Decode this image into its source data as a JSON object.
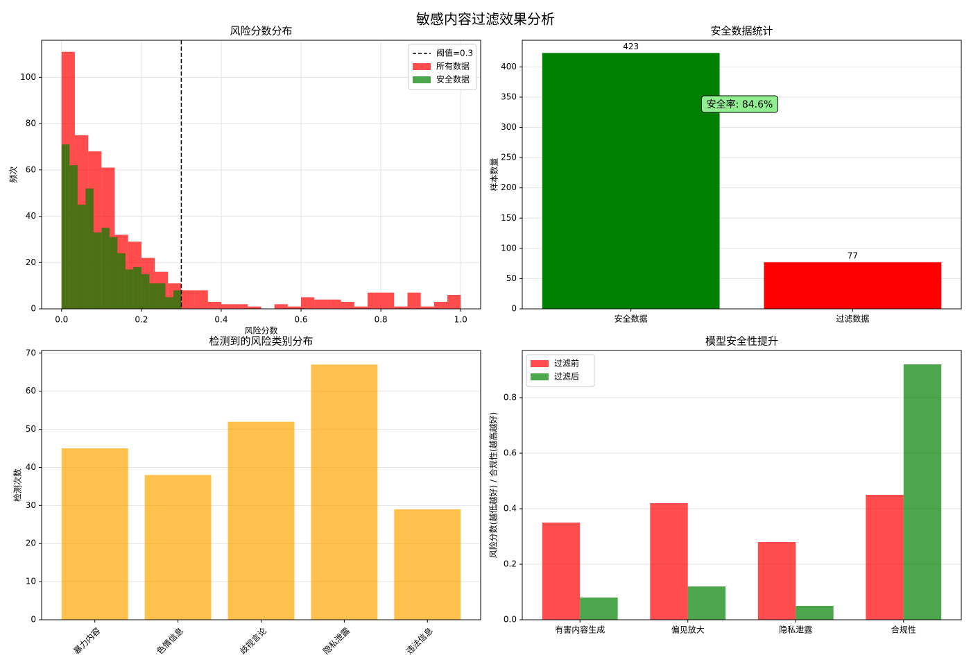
{
  "title": "敏感内容过滤效果分析",
  "chart_data": [
    {
      "type": "histogram",
      "title": "风险分数分布",
      "x_label": "风险分数",
      "y_label": "频次",
      "series": [
        {
          "name": "所有数据",
          "color": "#ff0000",
          "bins": [
            0,
            0.0333,
            0.0667,
            0.1,
            0.1333,
            0.1667,
            0.2,
            0.2333,
            0.2667,
            0.3,
            0.3333,
            0.3667,
            0.4,
            0.4333,
            0.4667,
            0.5,
            0.5333,
            0.5667,
            0.6,
            0.6333,
            0.6667,
            0.7,
            0.7333,
            0.7667,
            0.8,
            0.8333,
            0.8667,
            0.9,
            0.9333,
            0.9667,
            1
          ],
          "values": [
            111,
            75,
            68,
            61,
            32,
            29,
            22,
            16,
            11,
            8,
            8,
            3,
            2,
            2,
            1,
            0,
            2,
            1,
            5,
            4,
            4,
            3,
            1,
            7,
            7,
            1,
            7,
            1,
            3,
            6
          ]
        },
        {
          "name": "安全数据",
          "color": "#008000",
          "bins": [
            0,
            0.02,
            0.04,
            0.06,
            0.08,
            0.1,
            0.12,
            0.14,
            0.16,
            0.18,
            0.2,
            0.22,
            0.24,
            0.26,
            0.28,
            0.3
          ],
          "values": [
            71,
            62,
            45,
            52,
            33,
            35,
            31,
            24,
            17,
            18,
            15,
            11,
            11,
            5,
            8
          ]
        }
      ],
      "opacity": 0.7,
      "threshold": {
        "value": 0.3,
        "label": "阈值=0.3"
      },
      "xlim": [
        -0.05,
        1.05
      ],
      "ylim": [
        0,
        116
      ],
      "xticks": [
        {
          "value": 0,
          "label": "0.0"
        },
        0.2,
        0.4,
        0.6,
        0.8,
        {
          "value": 1,
          "label": "1.0"
        }
      ],
      "yticks": [
        0,
        20,
        40,
        60,
        80,
        100
      ],
      "grid": true,
      "legend": "upper right"
    },
    {
      "type": "bar",
      "title": "安全数据统计",
      "y_label": "样本数量",
      "categories": [
        "安全数据",
        "过滤数据"
      ],
      "values": [
        423,
        77
      ],
      "colors": [
        "#008000",
        "#ff0000"
      ],
      "show_values": true,
      "annotation": "安全率: 84.6%",
      "ylim": [
        0,
        444
      ],
      "yticks": [
        0,
        50,
        100,
        150,
        200,
        250,
        300,
        350,
        400
      ],
      "grid": true
    },
    {
      "type": "bar",
      "title": "检测到的风险类别分布",
      "y_label": "检测次数",
      "categories": [
        "暴力内容",
        "色情信息",
        "歧视言论",
        "隐私泄露",
        "违法信息"
      ],
      "values": [
        45,
        38,
        52,
        67,
        29
      ],
      "color": "#ffa500",
      "opacity": 0.7,
      "x_label_rotation": 45,
      "ylim": [
        0,
        70.7
      ],
      "yticks": [
        0,
        10,
        20,
        30,
        40,
        50,
        60,
        70
      ],
      "grid": true
    },
    {
      "type": "grouped_bar",
      "title": "模型安全性提升",
      "y_label": "风险分数(越低越好) / 合规性(越高越好)",
      "categories": [
        "有害内容生成",
        "偏见放大",
        "隐私泄露",
        "合规性"
      ],
      "series": [
        {
          "name": "过滤前",
          "color": "#ff0000",
          "values": [
            0.35,
            0.42,
            0.28,
            0.45
          ]
        },
        {
          "name": "过滤后",
          "color": "#008000",
          "values": [
            0.08,
            0.12,
            0.05,
            0.92
          ]
        }
      ],
      "opacity": 0.7,
      "ylim": [
        0,
        0.97
      ],
      "yticks": [
        {
          "value": 0,
          "label": "0.0"
        },
        0.2,
        0.4,
        0.6,
        0.8
      ],
      "grid": true,
      "legend": "upper left"
    }
  ]
}
